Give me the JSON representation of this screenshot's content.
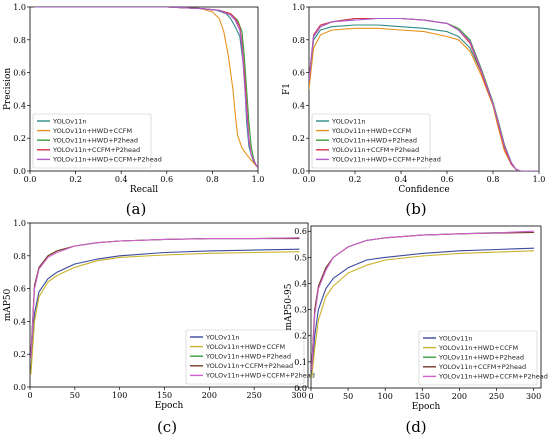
{
  "colors": {
    "YOLOv11n": "#2f8c86",
    "YOLOv11n+HWD+CCFM": "#e8921e",
    "YOLOv11n+HWD+P2head": "#3aa03a",
    "YOLOv11n+CCFM+P2head": "#d8324a",
    "YOLOv11n+HWD+CCFM+P2head": "#b05ad0",
    "mAP_YOLOv11n": "#3a4a9c",
    "mAP_YOLOv11n+HWD+CCFM": "#c9b22a",
    "mAP_YOLOv11n+HWD+P2head": "#3aa03a",
    "mAP_YOLOv11n+CCFM+P2head": "#7a3a2a",
    "mAP_YOLOv11n+HWD+CCFM+P2head": "#d060d0"
  },
  "chart_data": [
    {
      "type": "line",
      "caption": "(a)",
      "xlabel": "Recall",
      "ylabel": "Precision",
      "xlim": [
        0,
        1
      ],
      "ylim": [
        0,
        1
      ],
      "xticks": [
        "0.0",
        "0.2",
        "0.4",
        "0.6",
        "0.8",
        "1.0"
      ],
      "yticks": [
        "0.0",
        "0.2",
        "0.4",
        "0.6",
        "0.8",
        "1.0"
      ],
      "legend": "bottom-left",
      "series": [
        {
          "name": "YOLOv11n",
          "x": [
            0.02,
            0.2,
            0.4,
            0.6,
            0.75,
            0.82,
            0.86,
            0.88,
            0.9,
            0.92,
            0.94,
            0.95,
            0.96,
            0.97,
            0.98,
            1.0
          ],
          "y": [
            1.0,
            1.0,
            1.0,
            1.0,
            0.99,
            0.98,
            0.96,
            0.93,
            0.88,
            0.82,
            0.6,
            0.3,
            0.15,
            0.1,
            0.06,
            0.02
          ]
        },
        {
          "name": "YOLOv11n+HWD+CCFM",
          "x": [
            0.02,
            0.2,
            0.4,
            0.6,
            0.75,
            0.8,
            0.83,
            0.85,
            0.87,
            0.89,
            0.9,
            0.91,
            0.93,
            0.95,
            0.98,
            1.0
          ],
          "y": [
            1.0,
            1.0,
            1.0,
            1.0,
            0.99,
            0.97,
            0.93,
            0.85,
            0.7,
            0.5,
            0.35,
            0.22,
            0.14,
            0.1,
            0.05,
            0.02
          ]
        },
        {
          "name": "YOLOv11n+HWD+P2head",
          "x": [
            0.02,
            0.2,
            0.4,
            0.6,
            0.75,
            0.83,
            0.88,
            0.91,
            0.93,
            0.94,
            0.95,
            0.96,
            0.97,
            0.98,
            0.99,
            1.0
          ],
          "y": [
            1.0,
            1.0,
            1.0,
            1.0,
            0.99,
            0.98,
            0.96,
            0.92,
            0.85,
            0.7,
            0.5,
            0.3,
            0.15,
            0.08,
            0.04,
            0.02
          ]
        },
        {
          "name": "YOLOv11n+CCFM+P2head",
          "x": [
            0.02,
            0.2,
            0.4,
            0.6,
            0.75,
            0.83,
            0.88,
            0.9,
            0.92,
            0.93,
            0.94,
            0.95,
            0.96,
            0.97,
            0.99,
            1.0
          ],
          "y": [
            1.0,
            1.0,
            1.0,
            1.0,
            0.99,
            0.98,
            0.96,
            0.93,
            0.88,
            0.78,
            0.6,
            0.4,
            0.2,
            0.1,
            0.04,
            0.02
          ]
        },
        {
          "name": "YOLOv11n+HWD+CCFM+P2head",
          "x": [
            0.02,
            0.2,
            0.4,
            0.6,
            0.75,
            0.83,
            0.88,
            0.9,
            0.92,
            0.93,
            0.94,
            0.95,
            0.96,
            0.97,
            0.99,
            1.0
          ],
          "y": [
            1.0,
            1.0,
            1.0,
            1.0,
            0.99,
            0.98,
            0.95,
            0.92,
            0.86,
            0.75,
            0.55,
            0.35,
            0.18,
            0.1,
            0.04,
            0.02
          ]
        }
      ]
    },
    {
      "type": "line",
      "caption": "(b)",
      "xlabel": "Confidence",
      "ylabel": "F1",
      "xlim": [
        0,
        1
      ],
      "ylim": [
        0,
        1
      ],
      "xticks": [
        "0.0",
        "0.2",
        "0.4",
        "0.6",
        "0.8",
        "1.0"
      ],
      "yticks": [
        "0.0",
        "0.2",
        "0.4",
        "0.6",
        "0.8",
        "1.0"
      ],
      "legend": "bottom-left",
      "series": [
        {
          "name": "YOLOv11n",
          "x": [
            0.0,
            0.02,
            0.05,
            0.1,
            0.2,
            0.3,
            0.4,
            0.5,
            0.6,
            0.65,
            0.7,
            0.75,
            0.78,
            0.8,
            0.82,
            0.85,
            0.88,
            0.9,
            0.92,
            1.0
          ],
          "y": [
            0.55,
            0.8,
            0.86,
            0.88,
            0.89,
            0.89,
            0.88,
            0.87,
            0.85,
            0.82,
            0.75,
            0.6,
            0.48,
            0.4,
            0.3,
            0.15,
            0.05,
            0.01,
            0.0,
            0.0
          ]
        },
        {
          "name": "YOLOv11n+HWD+CCFM",
          "x": [
            0.0,
            0.02,
            0.05,
            0.1,
            0.2,
            0.3,
            0.4,
            0.5,
            0.6,
            0.65,
            0.7,
            0.75,
            0.78,
            0.8,
            0.82,
            0.85,
            0.88,
            0.9,
            0.92,
            1.0
          ],
          "y": [
            0.5,
            0.75,
            0.83,
            0.86,
            0.87,
            0.87,
            0.86,
            0.85,
            0.82,
            0.8,
            0.73,
            0.58,
            0.47,
            0.4,
            0.28,
            0.12,
            0.04,
            0.01,
            0.0,
            0.0
          ]
        },
        {
          "name": "YOLOv11n+HWD+P2head",
          "x": [
            0.0,
            0.02,
            0.05,
            0.1,
            0.2,
            0.3,
            0.4,
            0.5,
            0.6,
            0.65,
            0.7,
            0.75,
            0.78,
            0.8,
            0.82,
            0.85,
            0.88,
            0.9,
            0.92,
            1.0
          ],
          "y": [
            0.55,
            0.82,
            0.88,
            0.91,
            0.93,
            0.93,
            0.93,
            0.92,
            0.9,
            0.87,
            0.8,
            0.62,
            0.5,
            0.42,
            0.32,
            0.16,
            0.05,
            0.01,
            0.0,
            0.0
          ]
        },
        {
          "name": "YOLOv11n+CCFM+P2head",
          "x": [
            0.0,
            0.02,
            0.05,
            0.1,
            0.2,
            0.3,
            0.4,
            0.5,
            0.6,
            0.65,
            0.7,
            0.75,
            0.78,
            0.8,
            0.82,
            0.85,
            0.88,
            0.9,
            0.92,
            1.0
          ],
          "y": [
            0.55,
            0.83,
            0.89,
            0.91,
            0.93,
            0.93,
            0.93,
            0.92,
            0.9,
            0.86,
            0.78,
            0.6,
            0.48,
            0.41,
            0.3,
            0.14,
            0.04,
            0.01,
            0.0,
            0.0
          ]
        },
        {
          "name": "YOLOv11n+HWD+CCFM+P2head",
          "x": [
            0.0,
            0.02,
            0.05,
            0.1,
            0.2,
            0.3,
            0.4,
            0.5,
            0.6,
            0.65,
            0.7,
            0.75,
            0.78,
            0.8,
            0.82,
            0.85,
            0.88,
            0.9,
            0.92,
            1.0
          ],
          "y": [
            0.55,
            0.82,
            0.88,
            0.91,
            0.92,
            0.93,
            0.93,
            0.92,
            0.9,
            0.86,
            0.79,
            0.61,
            0.49,
            0.41,
            0.31,
            0.15,
            0.05,
            0.01,
            0.0,
            0.0
          ]
        }
      ]
    },
    {
      "type": "line",
      "caption": "(c)",
      "xlabel": "Epoch",
      "ylabel": "mAP50",
      "xlim": [
        0,
        310
      ],
      "ylim": [
        0,
        1
      ],
      "xticks": [
        "0",
        "50",
        "100",
        "150",
        "200",
        "250",
        "300"
      ],
      "yticks": [
        "0.0",
        "0.2",
        "0.4",
        "0.6",
        "0.8",
        "1.0"
      ],
      "legend": "bottom-right",
      "series": [
        {
          "name": "YOLOv11n",
          "x": [
            1,
            5,
            10,
            20,
            30,
            50,
            75,
            100,
            150,
            200,
            250,
            300
          ],
          "y": [
            0.1,
            0.45,
            0.58,
            0.66,
            0.7,
            0.75,
            0.78,
            0.8,
            0.82,
            0.83,
            0.835,
            0.84
          ]
        },
        {
          "name": "YOLOv11n+HWD+CCFM",
          "x": [
            1,
            5,
            10,
            20,
            30,
            50,
            75,
            100,
            150,
            200,
            250,
            300
          ],
          "y": [
            0.08,
            0.4,
            0.55,
            0.64,
            0.68,
            0.73,
            0.77,
            0.79,
            0.805,
            0.815,
            0.82,
            0.825
          ]
        },
        {
          "name": "YOLOv11n+HWD+P2head",
          "x": [
            1,
            5,
            10,
            20,
            30,
            50,
            75,
            100,
            150,
            200,
            250,
            300
          ],
          "y": [
            0.2,
            0.6,
            0.72,
            0.8,
            0.83,
            0.86,
            0.88,
            0.89,
            0.9,
            0.905,
            0.905,
            0.91
          ]
        },
        {
          "name": "YOLOv11n+CCFM+P2head",
          "x": [
            1,
            5,
            10,
            20,
            30,
            50,
            75,
            100,
            150,
            200,
            250,
            300
          ],
          "y": [
            0.2,
            0.62,
            0.73,
            0.8,
            0.83,
            0.86,
            0.88,
            0.89,
            0.9,
            0.905,
            0.905,
            0.905
          ]
        },
        {
          "name": "YOLOv11n+HWD+CCFM+P2head",
          "x": [
            1,
            5,
            10,
            20,
            30,
            50,
            75,
            100,
            150,
            200,
            250,
            300
          ],
          "y": [
            0.18,
            0.6,
            0.72,
            0.79,
            0.82,
            0.86,
            0.88,
            0.89,
            0.9,
            0.905,
            0.905,
            0.91
          ]
        }
      ]
    },
    {
      "type": "line",
      "caption": "(d)",
      "xlabel": "Epoch",
      "ylabel": "mAP50-95",
      "xlim": [
        0,
        310
      ],
      "ylim": [
        0,
        0.62
      ],
      "xticks": [
        "0",
        "50",
        "100",
        "150",
        "200",
        "250",
        "300"
      ],
      "yticks": [
        "0.0",
        "0.1",
        "0.2",
        "0.3",
        "0.4",
        "0.5",
        "0.6"
      ],
      "legend": "bottom-right",
      "series": [
        {
          "name": "YOLOv11n",
          "x": [
            1,
            5,
            10,
            20,
            30,
            50,
            75,
            100,
            150,
            200,
            250,
            300
          ],
          "y": [
            0.05,
            0.2,
            0.3,
            0.38,
            0.42,
            0.46,
            0.49,
            0.5,
            0.515,
            0.525,
            0.53,
            0.535
          ]
        },
        {
          "name": "YOLOv11n+HWD+CCFM",
          "x": [
            1,
            5,
            10,
            20,
            30,
            50,
            75,
            100,
            150,
            200,
            250,
            300
          ],
          "y": [
            0.04,
            0.15,
            0.26,
            0.35,
            0.39,
            0.44,
            0.47,
            0.49,
            0.505,
            0.515,
            0.52,
            0.525
          ]
        },
        {
          "name": "YOLOv11n+HWD+P2head",
          "x": [
            1,
            5,
            10,
            20,
            30,
            50,
            75,
            100,
            150,
            200,
            250,
            300
          ],
          "y": [
            0.08,
            0.28,
            0.38,
            0.46,
            0.5,
            0.54,
            0.565,
            0.575,
            0.585,
            0.59,
            0.595,
            0.595
          ]
        },
        {
          "name": "YOLOv11n+CCFM+P2head",
          "x": [
            1,
            5,
            10,
            20,
            30,
            50,
            75,
            100,
            150,
            200,
            250,
            300
          ],
          "y": [
            0.08,
            0.3,
            0.39,
            0.46,
            0.5,
            0.54,
            0.565,
            0.575,
            0.585,
            0.59,
            0.593,
            0.595
          ]
        },
        {
          "name": "YOLOv11n+HWD+CCFM+P2head",
          "x": [
            1,
            5,
            10,
            20,
            30,
            50,
            75,
            100,
            150,
            200,
            250,
            300
          ],
          "y": [
            0.07,
            0.28,
            0.38,
            0.45,
            0.5,
            0.54,
            0.565,
            0.575,
            0.585,
            0.59,
            0.594,
            0.6
          ]
        }
      ]
    }
  ]
}
